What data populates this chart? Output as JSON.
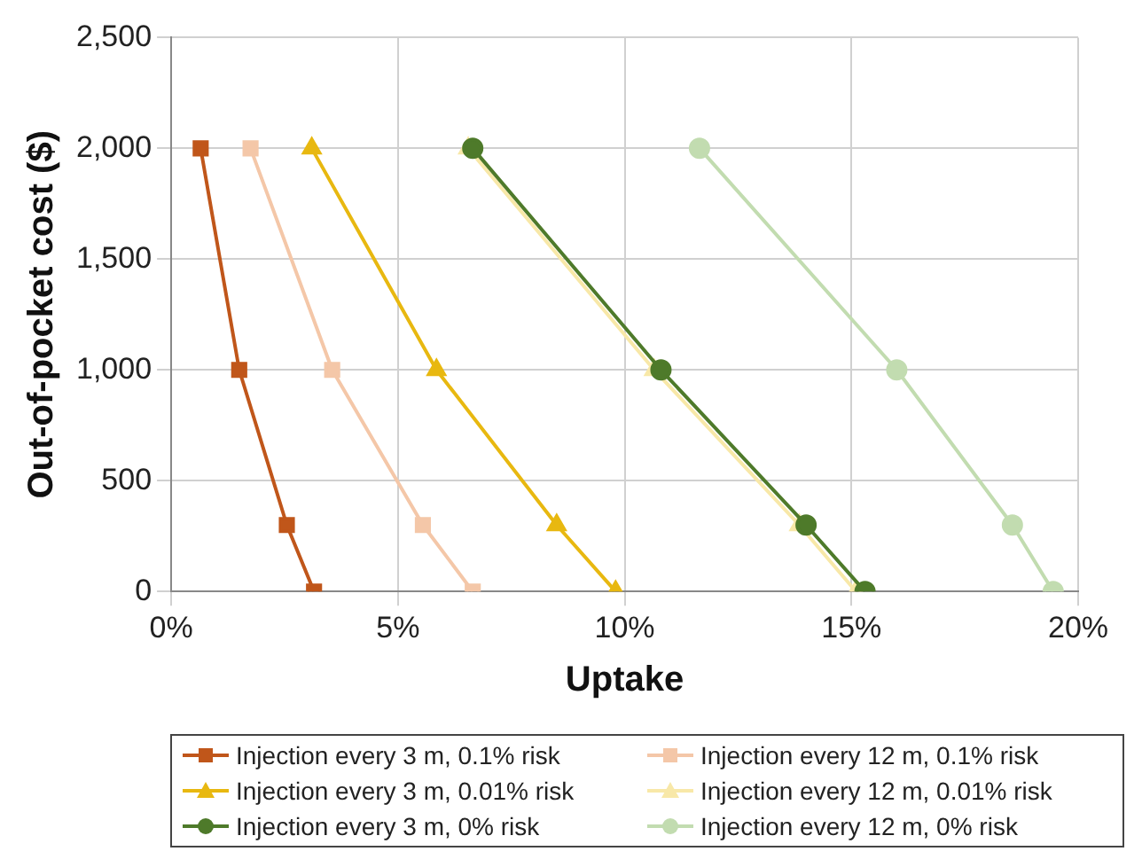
{
  "chart_data": {
    "type": "line",
    "xlabel": "Uptake",
    "ylabel": "Out-of-pocket cost ($)",
    "grid": true,
    "legend": "bottom",
    "xlim": [
      0,
      20
    ],
    "xticks": [
      {
        "value": 0,
        "label": "0%"
      },
      {
        "value": 5,
        "label": "5%"
      },
      {
        "value": 10,
        "label": "10%"
      },
      {
        "value": 15,
        "label": "15%"
      },
      {
        "value": 20,
        "label": "20%"
      }
    ],
    "ylim": [
      0,
      2500
    ],
    "yticks": [
      0,
      500,
      {
        "value": 1000,
        "label": "1,000"
      },
      {
        "value": 1500,
        "label": "1,500"
      },
      {
        "value": 2000,
        "label": "2,000"
      },
      {
        "value": 2500,
        "label": "2,500"
      }
    ],
    "series": [
      {
        "name": "Injection every 3 m, 0.1% risk",
        "color": "#c0561a",
        "marker": "square",
        "x": [
          0.65,
          1.5,
          2.55,
          3.15
        ],
        "values": [
          2000,
          1000,
          300,
          0
        ]
      },
      {
        "name": "Injection every 12 m, 0.1% risk",
        "color": "#f4c7a8",
        "marker": "square",
        "x": [
          1.75,
          3.55,
          5.55,
          6.65
        ],
        "values": [
          2000,
          1000,
          300,
          0
        ]
      },
      {
        "name": "Injection every 3 m, 0.01% risk",
        "color": "#e8b810",
        "marker": "triangle",
        "x": [
          3.1,
          5.85,
          8.5,
          9.8
        ],
        "values": [
          2000,
          1000,
          300,
          0
        ]
      },
      {
        "name": "Injection every 12 m, 0.01% risk",
        "color": "#f8e8a8",
        "marker": "triangle",
        "x": [
          6.55,
          10.65,
          13.85,
          15.1
        ],
        "values": [
          2000,
          1000,
          300,
          0
        ]
      },
      {
        "name": "Injection every 3 m, 0% risk",
        "color": "#4e7a2a",
        "marker": "circle",
        "x": [
          6.65,
          10.8,
          14.0,
          15.3
        ],
        "values": [
          2000,
          1000,
          300,
          0
        ]
      },
      {
        "name": "Injection every 12 m, 0% risk",
        "color": "#c2dcb0",
        "marker": "circle",
        "x": [
          11.65,
          16.0,
          18.55,
          19.45
        ],
        "values": [
          2000,
          1000,
          300,
          0
        ]
      }
    ]
  }
}
